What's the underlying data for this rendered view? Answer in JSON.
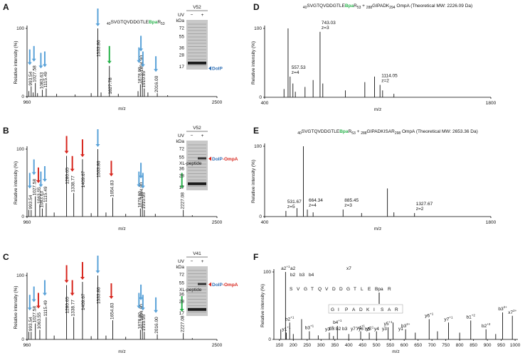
{
  "chart_data": [
    {
      "type": "stick",
      "panel": "A",
      "xlabel": "m/z",
      "ylabel": "Relative intensity (%)",
      "label_style": "vertical",
      "stick_color": "#111111",
      "xlim": [
        960,
        2500
      ],
      "ylim": [
        0,
        100
      ],
      "xticks": [
        960,
        2500
      ],
      "yticks": [
        0,
        100
      ],
      "x": [
        975,
        993.54,
        1010,
        1027.58,
        1045,
        1083.63,
        1115.49,
        1200,
        1350,
        1480,
        1533.86,
        1560,
        1627.78,
        1700,
        1860,
        1878.9,
        1894.9,
        1910.95,
        1940,
        2016.0,
        2100
      ],
      "values": [
        8,
        15,
        6,
        20,
        5,
        10,
        12,
        4,
        3,
        5,
        100,
        6,
        45,
        4,
        8,
        18,
        35,
        12,
        6,
        5,
        2
      ],
      "peak_labels": [
        null,
        "993.54",
        null,
        "1027.58",
        null,
        "1083.63",
        "1115.49",
        null,
        null,
        null,
        "1533.86",
        null,
        "1627.78",
        null,
        null,
        "1878.90",
        "1894.90",
        "1910.95",
        null,
        "2016.00",
        null
      ],
      "arrow_colors": [
        null,
        "#5aa2d8",
        null,
        "#5aa2d8",
        null,
        "#5aa2d8",
        "#5aa2d8",
        null,
        null,
        null,
        "#5aa2d8",
        null,
        "#27b24a",
        null,
        null,
        "#5aa2d8",
        "#5aa2d8",
        "#5aa2d8",
        null,
        "#5aa2d8",
        null
      ],
      "peptide": [
        {
          "text": "40",
          "role": "sub"
        },
        {
          "text": "SVGTQVDDGTLE"
        },
        {
          "text": "Bpa",
          "role": "bpa"
        },
        {
          "text": "R"
        },
        {
          "text": "53",
          "role": "sub"
        }
      ],
      "gel": {
        "variant": "V52",
        "uv": "UV",
        "lanes": [
          "−",
          "+"
        ],
        "kda_label": "kDa",
        "markers": [
          72,
          55,
          36,
          28,
          17
        ],
        "band_at": 17,
        "band_label": [
          {
            "text": "DolP",
            "color": "#2f6fb5"
          }
        ]
      }
    },
    {
      "type": "stick",
      "panel": "B",
      "xlabel": "m/z",
      "ylabel": "Relative intensity (%)",
      "label_style": "vertical",
      "stick_color": "#111111",
      "xlim": [
        960,
        2500
      ],
      "ylim": [
        0,
        100
      ],
      "xticks": [
        960,
        2500
      ],
      "yticks": [
        0,
        100
      ],
      "x": [
        975,
        993.54,
        1027.58,
        1063.55,
        1083.63,
        1115.49,
        1180,
        1280.65,
        1338.77,
        1409.67,
        1480,
        1533.86,
        1600,
        1654.83,
        1760,
        1878.9,
        1894.9,
        1910.95,
        2000,
        2227.08,
        2300
      ],
      "values": [
        10,
        10,
        30,
        18,
        12,
        20,
        6,
        90,
        35,
        85,
        5,
        100,
        6,
        28,
        4,
        12,
        25,
        10,
        4,
        10,
        2
      ],
      "peak_labels": [
        null,
        "993.54",
        "1027.58",
        "1063.55",
        "1083.63",
        "1115.49",
        null,
        "1280.65",
        "1338.77",
        "1409.67",
        null,
        "1533.86",
        null,
        "1654.83",
        null,
        "1878.90",
        "1894.90",
        "1910.95",
        null,
        "2227.08",
        null
      ],
      "arrow_colors": [
        null,
        "#5aa2d8",
        "#5aa2d8",
        "#d7261e",
        "#5aa2d8",
        "#5aa2d8",
        null,
        "#d7261e",
        "#d7261e",
        "#d7261e",
        null,
        "#5aa2d8",
        null,
        "#d7261e",
        null,
        "#5aa2d8",
        "#5aa2d8",
        "#5aa2d8",
        null,
        "#27b24a",
        null
      ],
      "gel": {
        "variant": "V52",
        "uv": "UV",
        "lanes": [
          "−",
          "+"
        ],
        "kda_label": "kDa",
        "markers": [
          72,
          55,
          36,
          28,
          17
        ],
        "band_at": 55,
        "band_label": [
          {
            "text": "DolP",
            "color": "#2f6fb5"
          },
          {
            "text": "-OmpA",
            "color": "#d7261e"
          }
        ],
        "xl_label": "XL-peptide"
      }
    },
    {
      "type": "stick",
      "panel": "C",
      "xlabel": "m/z",
      "ylabel": "Relative intensity (%)",
      "label_style": "vertical",
      "stick_color": "#111111",
      "xlim": [
        960,
        2500
      ],
      "ylim": [
        0,
        100
      ],
      "xticks": [
        960,
        2500
      ],
      "yticks": [
        0,
        100
      ],
      "x": [
        975,
        993.54,
        1027.58,
        1063.55,
        1115.49,
        1180,
        1280.65,
        1338.77,
        1409.67,
        1480,
        1533.86,
        1600,
        1654.83,
        1760,
        1878.9,
        1894.9,
        1910.95,
        2016.0,
        2227.08,
        2300
      ],
      "values": [
        12,
        12,
        25,
        15,
        35,
        6,
        85,
        35,
        90,
        5,
        100,
        6,
        30,
        4,
        15,
        28,
        12,
        8,
        10,
        2
      ],
      "peak_labels": [
        null,
        "993.54",
        "1027.58",
        "1063.55",
        "1115.49",
        null,
        "1280.65",
        "1338.77",
        "1409.67",
        null,
        "1533.86",
        null,
        "1654.83",
        null,
        "1878.90",
        "1894.90",
        "1910.95",
        "2016.00",
        "2227.08",
        null
      ],
      "arrow_colors": [
        null,
        "#5aa2d8",
        "#5aa2d8",
        "#d7261e",
        "#5aa2d8",
        null,
        "#d7261e",
        "#d7261e",
        "#d7261e",
        null,
        "#5aa2d8",
        null,
        "#d7261e",
        null,
        "#5aa2d8",
        "#5aa2d8",
        "#5aa2d8",
        "#5aa2d8",
        "#27b24a",
        null
      ],
      "gel": {
        "variant": "V41",
        "uv": "UV",
        "lanes": [
          "−",
          "+"
        ],
        "kda_label": "kDa",
        "markers": [
          72,
          55,
          36,
          28,
          17
        ],
        "band_at": 55,
        "band_label": [
          {
            "text": "DolP",
            "color": "#2f6fb5"
          },
          {
            "text": "-OmpA",
            "color": "#d7261e"
          }
        ],
        "xl_label": "XL-peptide"
      }
    },
    {
      "type": "stick",
      "panel": "D",
      "xlabel": "m/z",
      "ylabel": "Relative intensity (%)",
      "label_style": "stacked",
      "stick_color": "#111111",
      "title": [
        {
          "text": "40",
          "role": "sub"
        },
        {
          "text": "SVGTQVDDGTLE"
        },
        {
          "text": "Bpa",
          "role": "bpa"
        },
        {
          "text": "R"
        },
        {
          "text": "53",
          "role": "sub"
        },
        {
          "text": " + "
        },
        {
          "text": "288",
          "role": "sub"
        },
        {
          "text": "GIPADK"
        },
        {
          "text": "294",
          "role": "sub"
        },
        {
          "text": " OmpA (Theoretical MW: 2226.09 Da)"
        }
      ],
      "xlim": [
        400,
        1800
      ],
      "ylim": [
        0,
        100
      ],
      "xticks": [
        400,
        1800
      ],
      "yticks": [
        0,
        100
      ],
      "x": [
        520,
        545,
        557.53,
        575,
        590,
        650,
        700,
        743.03,
        760,
        900,
        1020,
        1080,
        1114.05,
        1130,
        1200
      ],
      "values": [
        12,
        100,
        30,
        20,
        8,
        15,
        25,
        95,
        20,
        10,
        22,
        30,
        18,
        10,
        5
      ],
      "peak_labels": [
        null,
        null,
        "557.53",
        null,
        null,
        null,
        null,
        "743.03",
        null,
        null,
        null,
        null,
        "1114.05",
        null,
        null
      ],
      "peak_charges": [
        null,
        null,
        "z=4",
        null,
        null,
        null,
        null,
        "z=3",
        null,
        null,
        null,
        null,
        "z=2",
        null,
        null
      ]
    },
    {
      "type": "stick",
      "panel": "E",
      "xlabel": "m/z",
      "ylabel": "Relative intensity (%)",
      "label_style": "stacked",
      "stick_color": "#111111",
      "title": [
        {
          "text": "40",
          "role": "sub"
        },
        {
          "text": "SVGTQVDDGTLE"
        },
        {
          "text": "Bpa",
          "role": "bpa"
        },
        {
          "text": "R"
        },
        {
          "text": "53",
          "role": "sub"
        },
        {
          "text": " + "
        },
        {
          "text": "288",
          "role": "sub"
        },
        {
          "text": "GIPADKISAR"
        },
        {
          "text": "298",
          "role": "sub"
        },
        {
          "text": " OmpA (Theoretical MW: 2653.36 Da)"
        }
      ],
      "xlim": [
        400,
        1800
      ],
      "ylim": [
        0,
        100
      ],
      "xticks": [
        400,
        1800
      ],
      "yticks": [
        0,
        100
      ],
      "x": [
        531.67,
        600,
        640,
        664.34,
        700,
        885.45,
        1000,
        1160,
        1200,
        1327.67
      ],
      "values": [
        8,
        12,
        100,
        10,
        6,
        10,
        5,
        40,
        6,
        5
      ],
      "peak_labels": [
        "531.67",
        null,
        null,
        "664.34",
        null,
        "885.45",
        null,
        null,
        null,
        "1327.67"
      ],
      "peak_charges": [
        "z=5",
        null,
        null,
        "z=4",
        null,
        "z=3",
        null,
        null,
        null,
        "z=2"
      ]
    },
    {
      "type": "stick",
      "panel": "F",
      "xlabel": "m/z",
      "ylabel": "Relative intensity (%)",
      "label_style": "ion",
      "stick_color": "#111111",
      "xlim": [
        130,
        1010
      ],
      "ylim": [
        0,
        100
      ],
      "xticks": [
        150,
        200,
        250,
        300,
        350,
        400,
        450,
        500,
        550,
        600,
        650,
        700,
        750,
        800,
        850,
        900,
        950,
        1000
      ],
      "yticks": [
        0,
        100
      ],
      "x": [
        155,
        172,
        175,
        187,
        200,
        230,
        258,
        290,
        330,
        345,
        359,
        400,
        443,
        474,
        500,
        542,
        560,
        605,
        640,
        690,
        720,
        760,
        800,
        840,
        895,
        930,
        955,
        990
      ],
      "values": [
        15,
        100,
        10,
        25,
        8,
        30,
        12,
        6,
        10,
        5,
        20,
        8,
        12,
        10,
        12,
        18,
        25,
        15,
        10,
        30,
        12,
        25,
        10,
        28,
        15,
        8,
        40,
        35
      ],
      "peak_labels": [
        null,
        "a2",
        "y1",
        "b2",
        null,
        null,
        "b3",
        null,
        "y3",
        null,
        "b4",
        null,
        "y4",
        "b5",
        null,
        "y5",
        null,
        "b3",
        null,
        "y6",
        null,
        "y7",
        null,
        "b1",
        "b2",
        null,
        "b3",
        "x7"
      ],
      "peak_charges": [
        null,
        "+1",
        "+1",
        "+1",
        null,
        null,
        "+1",
        null,
        "+1",
        null,
        "+1",
        null,
        "+1",
        "+1",
        null,
        "+1",
        null,
        "2+",
        null,
        "+1",
        null,
        "+1",
        null,
        "+2",
        "+2",
        null,
        "2+",
        "2+"
      ],
      "label_colors": [
        null,
        "#29a9df",
        "#e0321f",
        "#29a9df",
        null,
        null,
        "#29a9df",
        null,
        "#e0321f",
        null,
        "#29a9df",
        null,
        "#e0321f",
        "#29a9df",
        null,
        "#e0321f",
        null,
        "#8cc63f",
        null,
        "#e0321f",
        null,
        "#e0321f",
        null,
        "#8cc63f",
        "#8cc63f",
        null,
        "#8cc63f",
        "#8cc63f"
      ],
      "fragment_map": {
        "top_ions": [
          "a2",
          "b2",
          "b3",
          "b4"
        ],
        "top_x": "x7",
        "top_sequence": [
          "S",
          "V",
          "G",
          "T",
          "Q",
          "V",
          "D",
          "D",
          "G",
          "T",
          "L",
          "E",
          "Bpa",
          "R"
        ],
        "bottom_sequence": [
          "G",
          "I",
          "P",
          "A",
          "D",
          "K",
          "I",
          "S",
          "A",
          "R"
        ],
        "b_ions": [
          "b3",
          "b2",
          "b3"
        ],
        "y_ions": [
          "y7",
          "y6",
          "y5",
          "y4",
          "y3",
          "y1"
        ]
      }
    }
  ]
}
